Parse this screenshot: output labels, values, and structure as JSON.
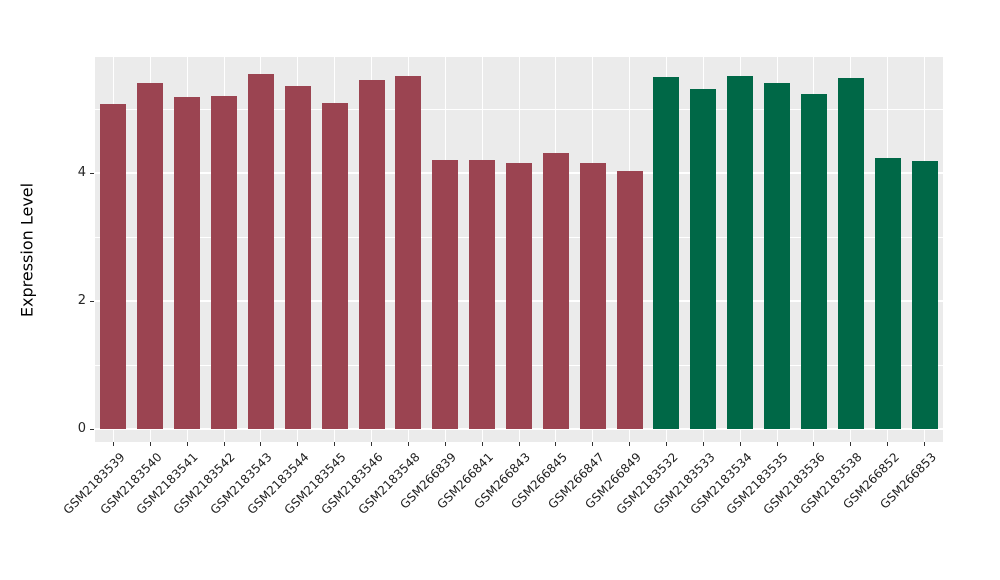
{
  "figure": {
    "background_color": "#ffffff",
    "panel_background_color": "#ebebeb",
    "gridline_color": "#ffffff",
    "tick_mark_color": "#333333",
    "axis_text_color": "#262626"
  },
  "chart_data": {
    "type": "bar",
    "title": "",
    "xlabel": "",
    "ylabel": "Expression Level",
    "ylim": [
      -0.2,
      5.81
    ],
    "yticks": [
      0,
      2,
      4
    ],
    "ytick_labels": [
      "0",
      "2",
      "4"
    ],
    "minor_gridlines": [
      1,
      3,
      5
    ],
    "grid": true,
    "legend_position": "none",
    "bar_width_fraction": 0.7,
    "x_label_angle": 45,
    "categories": [
      "GSM2183539",
      "GSM2183540",
      "GSM2183541",
      "GSM2183542",
      "GSM2183543",
      "GSM2183544",
      "GSM2183545",
      "GSM2183546",
      "GSM2183548",
      "GSM266839",
      "GSM266841",
      "GSM266843",
      "GSM266845",
      "GSM266847",
      "GSM266849",
      "GSM2183532",
      "GSM2183533",
      "GSM2183534",
      "GSM2183535",
      "GSM2183536",
      "GSM2183538",
      "GSM266852",
      "GSM266853"
    ],
    "values": [
      5.08,
      5.4,
      5.18,
      5.2,
      5.55,
      5.36,
      5.1,
      5.45,
      5.51,
      4.21,
      4.21,
      4.15,
      4.31,
      4.15,
      4.03,
      5.5,
      5.31,
      5.52,
      5.4,
      5.23,
      5.49,
      4.23,
      4.19
    ],
    "groups": [
      "group_a",
      "group_a",
      "group_a",
      "group_a",
      "group_a",
      "group_a",
      "group_a",
      "group_a",
      "group_a",
      "group_a",
      "group_a",
      "group_a",
      "group_a",
      "group_a",
      "group_a",
      "group_b",
      "group_b",
      "group_b",
      "group_b",
      "group_b",
      "group_b",
      "group_b",
      "group_b"
    ],
    "group_colors": {
      "group_a": "#9b4451",
      "group_b": "#006847"
    }
  }
}
